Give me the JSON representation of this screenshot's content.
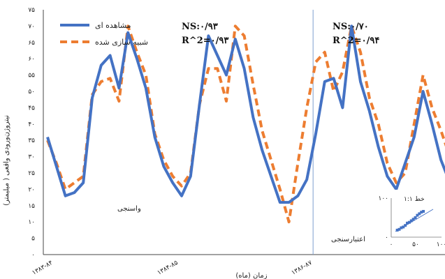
{
  "chart_data": {
    "type": "line",
    "ylabel": "نیتروژن‌ورودی واقعی ( میلیمتر)",
    "xlabel": "زمان (ماه)",
    "ylim": [
      0,
      75
    ],
    "yticks": [
      0,
      5,
      10,
      15,
      20,
      25,
      30,
      35,
      40,
      45,
      50,
      55,
      60,
      65,
      70,
      75
    ],
    "ytick_labels": [
      "۰",
      "۵",
      "۱۰",
      "۱۵",
      "۲۰",
      "۲۵",
      "۳۰",
      "۳۵",
      "۴۰",
      "۴۵",
      "۵۰",
      "۵۵",
      "۶۰",
      "۶۵",
      "۷۰",
      "۷۵"
    ],
    "xtick_labels": [
      "۱۳۸۳-۸۴",
      "۱۳۸۴-۸۵",
      "۱۳۸۶-۸۷"
    ],
    "xtick_index": [
      0,
      14,
      29
    ],
    "split_index": 30,
    "x": [
      0,
      1,
      2,
      3,
      4,
      5,
      6,
      7,
      8,
      9,
      10,
      11,
      12,
      13,
      14,
      15,
      16,
      17,
      18,
      19,
      20,
      21,
      22,
      23,
      24,
      25,
      26,
      27,
      28,
      29,
      30,
      31,
      32,
      33,
      34,
      35,
      36,
      37,
      38,
      39,
      40,
      41,
      42,
      43,
      44,
      45
    ],
    "series": [
      {
        "name": "مشاهده ای",
        "color": "#4472c4",
        "dash": "",
        "values": [
          36,
          27,
          18,
          19,
          22,
          48,
          58,
          61,
          51,
          68,
          60,
          51,
          36,
          27,
          22,
          18,
          24,
          46,
          67,
          61,
          55,
          66,
          57,
          42,
          32,
          24,
          16,
          16,
          18,
          23,
          37,
          53,
          54,
          45,
          70,
          53,
          44,
          33,
          24,
          20,
          28,
          36,
          50,
          40,
          29,
          22
        ]
      },
      {
        "name": "شبیه سازی شده",
        "color": "#ed7d31",
        "dash": "10,6",
        "values": [
          35,
          28,
          20,
          22,
          24,
          49,
          53,
          54,
          47,
          70,
          62,
          55,
          37,
          29,
          24,
          21,
          25,
          46,
          57,
          57,
          47,
          70,
          67,
          52,
          38,
          29,
          20,
          10,
          28,
          45,
          59,
          62,
          50,
          56,
          70,
          62,
          48,
          40,
          28,
          22,
          25,
          40,
          55,
          45,
          38,
          30
        ]
      }
    ],
    "annotations": [
      {
        "text": "NS:۰/۹۳"
      },
      {
        "text": "R^2=۰/۹۳"
      },
      {
        "text": "NS:۰/۷۰"
      },
      {
        "text": "R^2=۰/۹۴"
      },
      {
        "text": "واسنجی"
      },
      {
        "text": "اعتبارسنجی"
      }
    ],
    "inset": {
      "title": "خط ۱:۱",
      "ytick_labels": [
        "۱۰۰",
        "۰"
      ],
      "xtick_labels": [
        "۰",
        "۵۰",
        "۱۰۰"
      ],
      "points": [
        [
          12,
          18
        ],
        [
          16,
          20
        ],
        [
          20,
          24
        ],
        [
          24,
          26
        ],
        [
          28,
          30
        ],
        [
          32,
          36
        ],
        [
          36,
          38
        ],
        [
          40,
          42
        ],
        [
          44,
          46
        ],
        [
          48,
          50
        ],
        [
          52,
          56
        ],
        [
          56,
          60
        ],
        [
          60,
          64
        ],
        [
          64,
          66
        ]
      ]
    }
  }
}
